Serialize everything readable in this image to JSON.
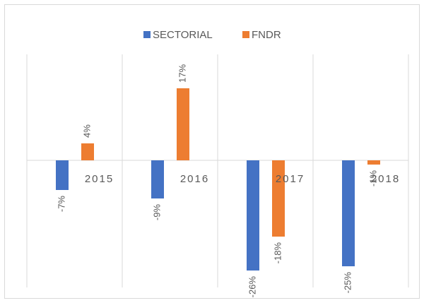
{
  "chart_data": {
    "type": "bar",
    "categories": [
      "2015",
      "2016",
      "2017",
      "2018"
    ],
    "series": [
      {
        "name": "SECTORIAL",
        "color": "#4472c4",
        "values": [
          -7,
          -9,
          -26,
          -25
        ],
        "value_labels": [
          "-7%",
          "-9%",
          "-26%",
          "-25%"
        ]
      },
      {
        "name": "FNDR",
        "color": "#ed7d31",
        "values": [
          4,
          17,
          -18,
          -1
        ],
        "value_labels": [
          "4%",
          "17%",
          "-18%",
          "-1%"
        ]
      }
    ],
    "ylim": [
      -30,
      25
    ],
    "legend": "top",
    "grid": "vertical"
  }
}
